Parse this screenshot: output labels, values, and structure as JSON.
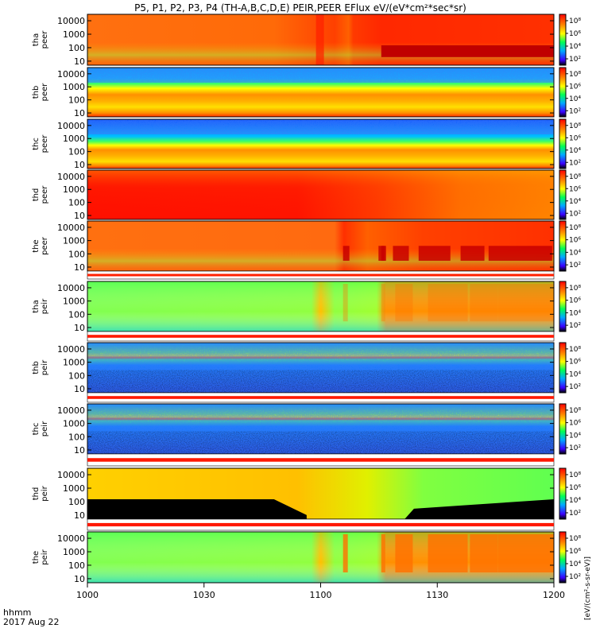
{
  "chart_data": {
    "type": "heatmap",
    "title": "P5, P1, P2, P3, P4 (TH-A,B,C,D,E) PEIR,PEER EFlux eV/(eV*cm²*sec*sr)",
    "x_axis": {
      "ticks": [
        "1000",
        "1030",
        "1100",
        "1130",
        "1200"
      ],
      "range": [
        "10:00",
        "12:00"
      ],
      "corner_label": "hhmm",
      "date_label": "2017 Aug 22"
    },
    "y_axis": {
      "scale": "log",
      "ticks": [
        "10",
        "100",
        "1000",
        "10000"
      ],
      "range": [
        5,
        30000
      ]
    },
    "colorbar": {
      "scale": "log",
      "ticks": [
        "10²",
        "10⁴",
        "10⁶",
        "10⁸"
      ],
      "label": "[eV/(cm²-s-sr-eV)]",
      "colors": [
        "#000000",
        "#1f00ff",
        "#00c8ff",
        "#00ff40",
        "#ffff00",
        "#ff8000",
        "#ff0000"
      ]
    },
    "panels": [
      {
        "probe": "tha",
        "species": "peer"
      },
      {
        "probe": "thb",
        "species": "peer"
      },
      {
        "probe": "thc",
        "species": "peer"
      },
      {
        "probe": "thd",
        "species": "peer"
      },
      {
        "probe": "the",
        "species": "peer"
      },
      {
        "probe": "tha",
        "species": "peir"
      },
      {
        "probe": "thb",
        "species": "peir"
      },
      {
        "probe": "thc",
        "species": "peir"
      },
      {
        "probe": "thd",
        "species": "peir"
      },
      {
        "probe": "the",
        "species": "peir"
      }
    ]
  }
}
